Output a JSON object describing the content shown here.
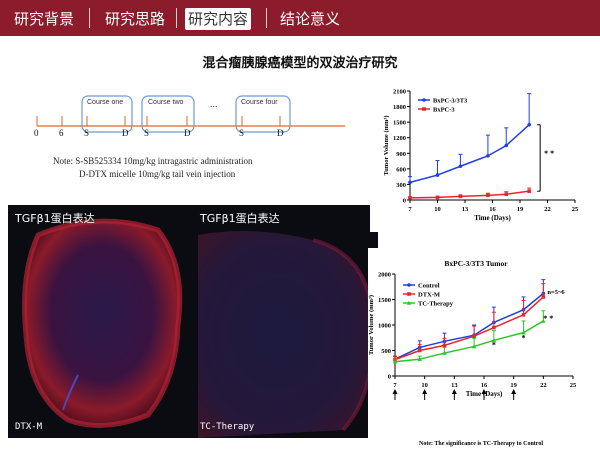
{
  "nav": {
    "tabs": [
      {
        "label": "研究背景",
        "active": false
      },
      {
        "label": "研究思路",
        "active": false
      },
      {
        "label": "研究内容",
        "active": true
      },
      {
        "label": "结论意义",
        "active": false
      }
    ]
  },
  "slide": {
    "title": "混合瘤胰腺癌模型的双波治疗研究"
  },
  "schedule": {
    "courses": [
      "Course one",
      "Course two",
      "Course four"
    ],
    "ellipsis": "...",
    "ticks": [
      "0",
      "6",
      "S",
      "D",
      "S",
      "D",
      "S",
      "D"
    ],
    "note_line1": "Note: S-SB525334 10mg/kg intragastric administration",
    "note_line2": "D-DTX micelle 10mg/kg tail vein injection"
  },
  "micrographs": [
    {
      "label": "TGFβ1蛋白表达",
      "footer": "DTX-M"
    },
    {
      "label": "TGFβ1蛋白表达",
      "footer": "TC-Therapy"
    }
  ],
  "colors": {
    "brand": "#8c1c2b",
    "blue": "#1f3fe0",
    "red": "#e8262c",
    "green": "#2ec52a"
  },
  "chart_data": [
    {
      "type": "line",
      "title": "",
      "xlabel": "Time (Days)",
      "ylabel": "Tumor Volume (mm³)",
      "xlim": [
        7,
        25
      ],
      "ylim": [
        0,
        2100
      ],
      "xticks": [
        7,
        10,
        13,
        16,
        19,
        22,
        25
      ],
      "yticks": [
        0,
        300,
        600,
        900,
        1200,
        1500,
        1800,
        2100
      ],
      "legend_position": "top-left",
      "significance": "* *",
      "series": [
        {
          "name": "BxPC-3/3T3",
          "color": "#1f3fe0",
          "x": [
            7,
            10,
            12.5,
            15.5,
            17.5,
            20
          ],
          "y": [
            340,
            480,
            650,
            850,
            1050,
            1450
          ],
          "err": [
            110,
            280,
            230,
            400,
            340,
            600
          ]
        },
        {
          "name": "BxPC-3",
          "color": "#e8262c",
          "x": [
            7,
            10,
            12.5,
            15.5,
            17.5,
            20
          ],
          "y": [
            40,
            50,
            70,
            90,
            110,
            170
          ],
          "err": [
            10,
            20,
            30,
            40,
            50,
            60
          ]
        }
      ]
    },
    {
      "type": "line",
      "title": "BxPC-3/3T3 Tumor",
      "xlabel": "Time (Days)",
      "ylabel": "Tumor Volume (mm³)",
      "xlim": [
        7,
        25
      ],
      "ylim": [
        0,
        2000
      ],
      "xticks": [
        7,
        10,
        13,
        16,
        19,
        22,
        25
      ],
      "yticks": [
        0,
        500,
        1000,
        1500,
        2000
      ],
      "legend_position": "top-left",
      "annotation": "n=5~6",
      "arrows_x": [
        7,
        10,
        13,
        16,
        19
      ],
      "stars": [
        {
          "x": 17,
          "text": "*"
        },
        {
          "x": 20,
          "text": "*"
        },
        {
          "x": 22.5,
          "text": "* *"
        }
      ],
      "note": "Note: The significance is TC-Therapy to Control",
      "series": [
        {
          "name": "Control",
          "color": "#1f3fe0",
          "x": [
            7,
            9.5,
            12,
            15,
            17,
            20,
            22
          ],
          "y": [
            330,
            560,
            680,
            800,
            1050,
            1300,
            1620
          ],
          "err": [
            60,
            130,
            160,
            200,
            300,
            250,
            270
          ]
        },
        {
          "name": "DTX-M",
          "color": "#e8262c",
          "x": [
            7,
            9.5,
            12,
            15,
            17,
            20,
            22
          ],
          "y": [
            320,
            500,
            600,
            780,
            950,
            1200,
            1550
          ],
          "err": [
            60,
            120,
            140,
            200,
            300,
            280,
            260
          ]
        },
        {
          "name": "TC-Therapy",
          "color": "#2ec52a",
          "x": [
            7,
            9.5,
            12,
            15,
            17,
            20,
            22
          ],
          "y": [
            280,
            330,
            450,
            580,
            700,
            850,
            1080
          ],
          "err": [
            50,
            60,
            110,
            160,
            190,
            230,
            200
          ]
        }
      ]
    }
  ]
}
